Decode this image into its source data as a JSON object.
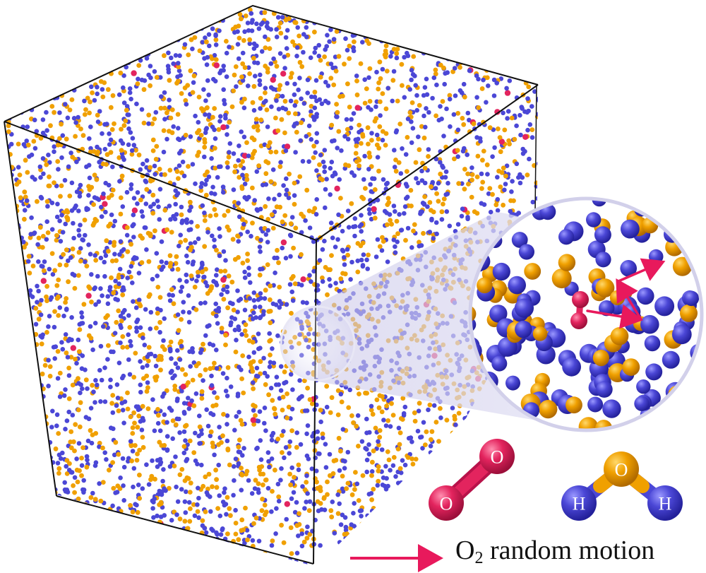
{
  "colors": {
    "oxygen_water": "#F0A000",
    "hydrogen": "#4B47D6",
    "oxygen_o2": "#E3245E",
    "box_edge": "#111111",
    "arrow": "#E8195C"
  },
  "molecules": {
    "o2": {
      "atom_a": "O",
      "atom_b": "O"
    },
    "water": {
      "oxygen": "O",
      "hydrogen_left": "H",
      "hydrogen_right": "H"
    }
  },
  "legend": {
    "label_main": "O",
    "label_sub": "2",
    "label_rest": " random motion"
  }
}
